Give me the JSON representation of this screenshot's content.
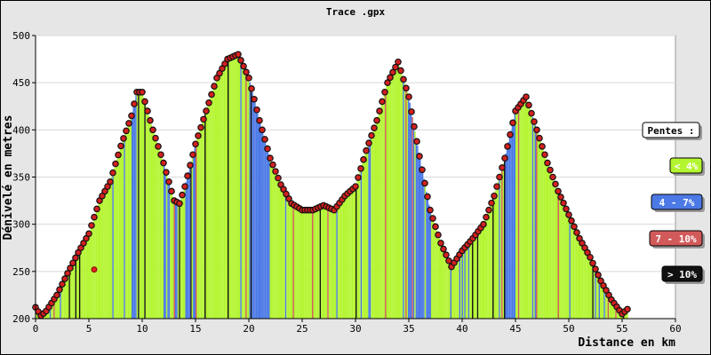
{
  "chart_data": {
    "type": "area",
    "title": "Trace .gpx",
    "xlabel": "Distance en km",
    "ylabel": "Dénivelé en metres",
    "xlim": [
      0,
      60
    ],
    "ylim": [
      200,
      500
    ],
    "x_ticks": [
      "0",
      "5",
      "10",
      "15",
      "20",
      "25",
      "30",
      "35",
      "40",
      "45",
      "50",
      "55",
      "60"
    ],
    "y_ticks": [
      "200",
      "250",
      "300",
      "350",
      "400",
      "450",
      "500"
    ],
    "grid": true,
    "legend_title": "Pentes :",
    "legend": [
      {
        "label": "< 4%",
        "color": "#b4f531"
      },
      {
        "label": "4 - 7%",
        "color": "#4b79e6"
      },
      {
        "label": "7 - 10%",
        "color": "#d25a5a"
      },
      {
        "label": "> 10%",
        "color": "#111111"
      }
    ],
    "profile": {
      "x": [
        0,
        0.5,
        1,
        2,
        3,
        4,
        5,
        6,
        7,
        8,
        9,
        9.5,
        10,
        11,
        12,
        13,
        13.5,
        14,
        15,
        16,
        17,
        18,
        19,
        20,
        21,
        22,
        23,
        24,
        25,
        26,
        27,
        28,
        29,
        30,
        31,
        32,
        33,
        34,
        35,
        36,
        37,
        38,
        39,
        40,
        41,
        42,
        43,
        44,
        45,
        46,
        47,
        48,
        49,
        50,
        51,
        52,
        53,
        54,
        55,
        55.5
      ],
      "y": [
        212,
        203,
        208,
        225,
        248,
        270,
        290,
        325,
        345,
        383,
        415,
        440,
        440,
        400,
        365,
        325,
        322,
        340,
        385,
        420,
        455,
        475,
        480,
        455,
        410,
        370,
        342,
        322,
        315,
        315,
        320,
        315,
        330,
        340,
        378,
        410,
        450,
        472,
        435,
        372,
        315,
        280,
        255,
        272,
        285,
        300,
        330,
        370,
        420,
        435,
        400,
        365,
        335,
        310,
        285,
        265,
        240,
        220,
        205,
        210
      ]
    },
    "outlier": {
      "x": 5.5,
      "y": 252
    }
  }
}
